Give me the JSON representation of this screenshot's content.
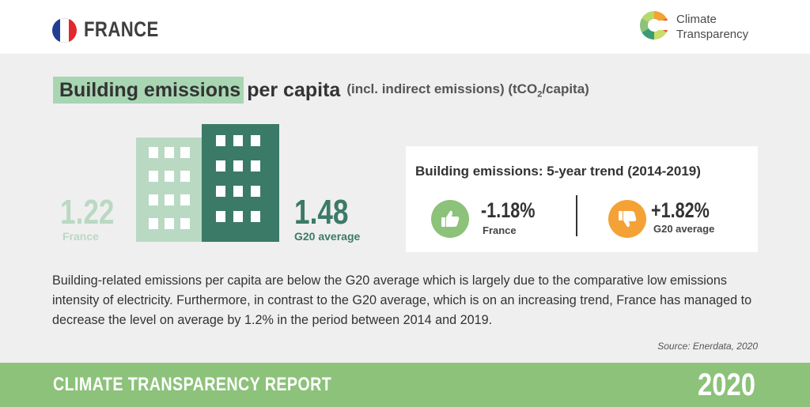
{
  "header": {
    "country": "FRANCE",
    "flag_colors": [
      "#1f3f95",
      "#ffffff",
      "#e3262f"
    ],
    "logo_text_line1": "Climate",
    "logo_text_line2": "Transparency",
    "logo_colors": [
      "#f4a235",
      "#8cc27a",
      "#3b9c74",
      "#e4572e",
      "#c9dd6b"
    ]
  },
  "section": {
    "title_highlight": "Building emissions",
    "title_rest": "per capita",
    "title_unit_pre": "(incl. indirect emissions) (tCO",
    "title_unit_sub": "2",
    "title_unit_post": "/capita)"
  },
  "comparison": {
    "france_value": "1.22",
    "france_label": "France",
    "g20_value": "1.48",
    "g20_label": "G20 average",
    "france_color": "#b9d9c2",
    "g20_color": "#3b7a67"
  },
  "trend": {
    "title": "Building emissions: 5-year trend (2014-2019)",
    "france_pct": "-1.18%",
    "france_label": "France",
    "france_icon": "thumbs-up-icon",
    "g20_pct": "+1.82%",
    "g20_label": "G20 average",
    "g20_icon": "thumbs-down-icon"
  },
  "description": "Building-related emissions per capita are below the G20 average which is largely due to the comparative low emissions intensity of electricity. Furthermore, in contrast to the G20 average, which is on an increasing trend, France has managed to decrease the level on average by 1.2% in the period between 2014 and 2019.",
  "source": "Source: Enerdata, 2020",
  "footer": {
    "title": "CLIMATE TRANSPARENCY REPORT",
    "year": "2020",
    "color": "#8cc27a"
  }
}
